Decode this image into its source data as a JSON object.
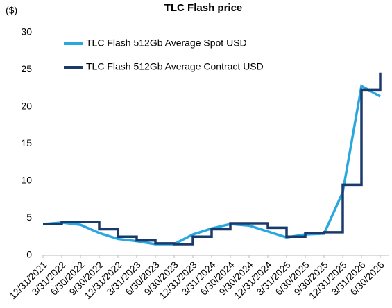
{
  "chart_data": {
    "type": "line",
    "title": "TLC Flash price",
    "y_label": "($)",
    "x": [
      "12/31/2021",
      "3/31/2022",
      "6/30/2022",
      "9/30/2022",
      "12/31/2022",
      "3/31/2023",
      "6/30/2023",
      "9/30/2023",
      "12/31/2023",
      "3/31/2024",
      "6/30/2024",
      "9/30/2024",
      "12/31/2024",
      "3/31/2025",
      "6/30/2025",
      "9/30/2025",
      "12/31/2025",
      "3/31/2026",
      "6/30/2026"
    ],
    "series": [
      {
        "name": "TLC Flash 512Gb Average Spot USD",
        "color": "#29a8e0",
        "values": [
          4.2,
          4.4,
          4.1,
          3.0,
          2.2,
          1.9,
          1.5,
          1.5,
          2.8,
          3.6,
          4.2,
          4.0,
          3.2,
          2.4,
          2.8,
          2.9,
          8.5,
          22.8,
          21.4
        ]
      },
      {
        "name": "TLC Flash 512Gb Average Contract USD",
        "color": "#1a3a6b",
        "step": "post",
        "values": [
          4.2,
          4.5,
          4.5,
          3.5,
          2.5,
          2.0,
          1.6,
          1.5,
          2.5,
          3.5,
          4.3,
          4.3,
          3.7,
          2.5,
          3.0,
          3.1,
          9.5,
          22.3,
          24.6
        ]
      }
    ],
    "ylim": [
      0,
      30
    ],
    "yticks": [
      0,
      5,
      10,
      15,
      20,
      25,
      30
    ],
    "legend": "top-left"
  }
}
